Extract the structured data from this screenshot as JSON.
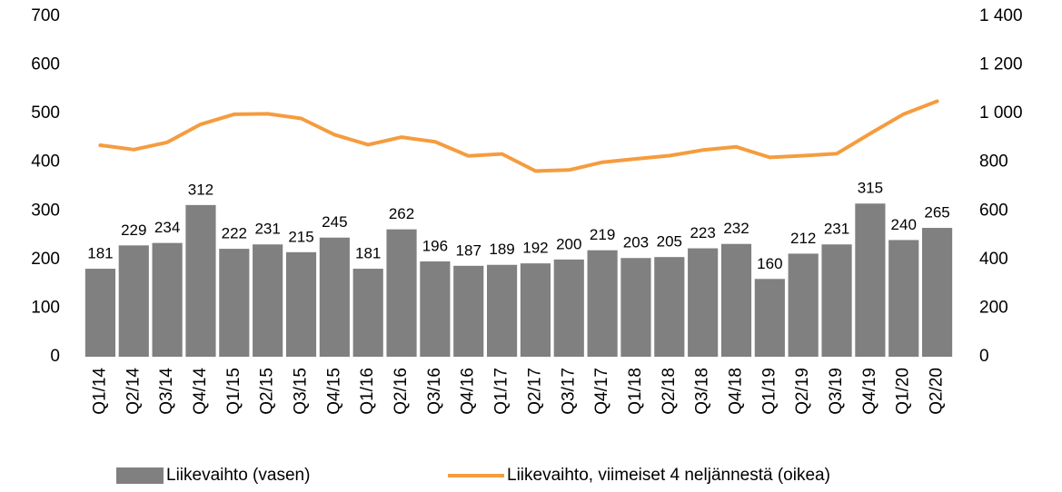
{
  "chart_data": {
    "type": "bar",
    "categories": [
      "Q1/14",
      "Q2/14",
      "Q3/14",
      "Q4/14",
      "Q1/15",
      "Q2/15",
      "Q3/15",
      "Q4/15",
      "Q1/16",
      "Q2/16",
      "Q3/16",
      "Q4/16",
      "Q1/17",
      "Q2/17",
      "Q3/17",
      "Q4/17",
      "Q1/18",
      "Q2/18",
      "Q3/18",
      "Q4/18",
      "Q1/19",
      "Q2/19",
      "Q3/19",
      "Q4/19",
      "Q1/20",
      "Q2/20"
    ],
    "series": [
      {
        "name": "Liikevaihto (vasen)",
        "type": "bar",
        "color": "#808080",
        "values": [
          181,
          229,
          234,
          312,
          222,
          231,
          215,
          245,
          181,
          262,
          196,
          187,
          189,
          192,
          200,
          219,
          203,
          205,
          223,
          232,
          160,
          212,
          231,
          315,
          240,
          265
        ]
      },
      {
        "name": "Liikevaihto, viimeiset 4 neljännestä (oikea)",
        "type": "line",
        "axis": "y2",
        "color": "#f59c3e",
        "values": [
          870,
          852,
          882,
          956,
          997,
          999,
          980,
          913,
          872,
          903,
          884,
          826,
          834,
          764,
          768,
          800,
          814,
          827,
          850,
          863,
          820,
          827,
          835,
          918,
          998,
          1051
        ]
      }
    ],
    "ylim": [
      0,
      700
    ],
    "yticks": [
      0,
      100,
      200,
      300,
      400,
      500,
      600,
      700
    ],
    "y2lim": [
      0,
      1400
    ],
    "y2ticks": [
      0,
      200,
      400,
      600,
      800,
      {
        "value": 1000,
        "label": "1 000"
      },
      {
        "value": 1200,
        "label": "1 200"
      },
      {
        "value": 1400,
        "label": "1 400"
      }
    ],
    "legend": "bottom"
  }
}
